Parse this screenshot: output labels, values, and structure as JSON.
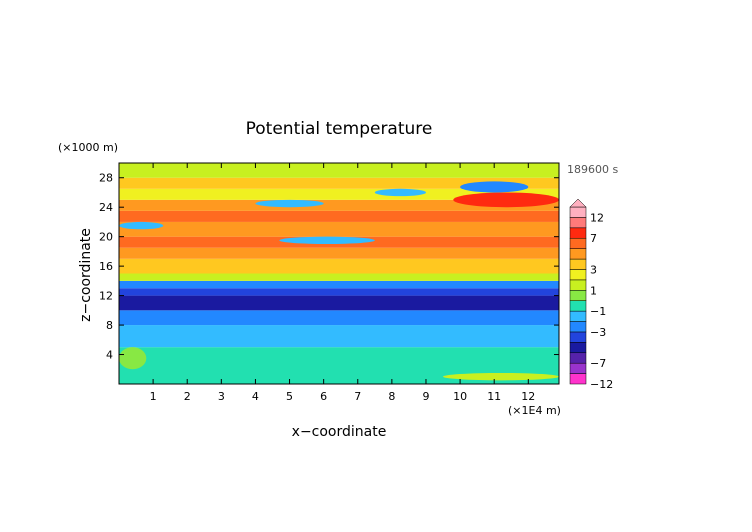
{
  "chart_data": {
    "type": "heatmap",
    "title": "Potential temperature",
    "xlabel": "x−coordinate",
    "ylabel": "z−coordinate",
    "x_unit": "(×1E4 m)",
    "y_unit": "(×1000 m)",
    "time_label": "189600 s",
    "x_range": [
      0,
      12.9
    ],
    "y_range": [
      0,
      30
    ],
    "x_ticks": [
      "1",
      "2",
      "3",
      "4",
      "5",
      "6",
      "7",
      "8",
      "9",
      "10",
      "11",
      "12"
    ],
    "y_ticks": [
      "4",
      "8",
      "12",
      "16",
      "20",
      "24",
      "28"
    ],
    "colorbar": {
      "labels": [
        "12",
        "7",
        "3",
        "1",
        "−1",
        "−3",
        "−7",
        "−12"
      ],
      "levels": [
        -12,
        -9,
        -7,
        -5,
        -4,
        -3,
        -2,
        -1,
        0,
        1,
        2,
        3,
        4,
        5,
        7,
        9,
        12
      ],
      "colors": [
        "#ff33cc",
        "#9933cc",
        "#5522aa",
        "#1a1aa0",
        "#2244dd",
        "#2288ff",
        "#33bbff",
        "#22e0b0",
        "#88e844",
        "#c8f020",
        "#f0f020",
        "#ffc820",
        "#ff9920",
        "#ff6a20",
        "#ff2a10",
        "#ff7a7a",
        "#ffb0c0"
      ]
    },
    "bands": [
      {
        "z": [
          0,
          5
        ],
        "theta": -1
      },
      {
        "z": [
          5,
          8
        ],
        "theta": -2
      },
      {
        "z": [
          8,
          10
        ],
        "theta": -3
      },
      {
        "z": [
          10,
          12
        ],
        "theta": -5
      },
      {
        "z": [
          12,
          13
        ],
        "theta": -4
      },
      {
        "z": [
          13,
          14
        ],
        "theta": -3
      },
      {
        "z": [
          14,
          15
        ],
        "theta": 1
      },
      {
        "z": [
          15,
          17
        ],
        "theta": 3
      },
      {
        "z": [
          17,
          18.5
        ],
        "theta": 4
      },
      {
        "z": [
          18.5,
          20
        ],
        "theta": 5
      },
      {
        "z": [
          20,
          22
        ],
        "theta": 4
      },
      {
        "z": [
          22,
          23.5
        ],
        "theta": 5
      },
      {
        "z": [
          23.5,
          25
        ],
        "theta": 4
      },
      {
        "z": [
          25,
          26.5
        ],
        "theta": 2
      },
      {
        "z": [
          26.5,
          28
        ],
        "theta": 3
      },
      {
        "z": [
          28,
          30
        ],
        "theta": 1
      }
    ],
    "blobs": [
      {
        "x": [
          4.7,
          7.5
        ],
        "z": [
          19,
          20
        ],
        "theta": -2
      },
      {
        "x": [
          9.8,
          12.9
        ],
        "z": [
          24,
          26
        ],
        "theta": 7
      },
      {
        "x": [
          10.0,
          12.0
        ],
        "z": [
          26,
          27.5
        ],
        "theta": -3
      },
      {
        "x": [
          7.5,
          9.0
        ],
        "z": [
          25.5,
          26.5
        ],
        "theta": -2
      },
      {
        "x": [
          4.0,
          6.0
        ],
        "z": [
          24,
          25
        ],
        "theta": -2
      },
      {
        "x": [
          0.0,
          1.3
        ],
        "z": [
          21,
          22
        ],
        "theta": -2
      },
      {
        "x": [
          0.0,
          0.8
        ],
        "z": [
          2,
          5
        ],
        "theta": 0
      },
      {
        "x": [
          9.5,
          12.9
        ],
        "z": [
          0.5,
          1.5
        ],
        "theta": 1
      }
    ]
  }
}
